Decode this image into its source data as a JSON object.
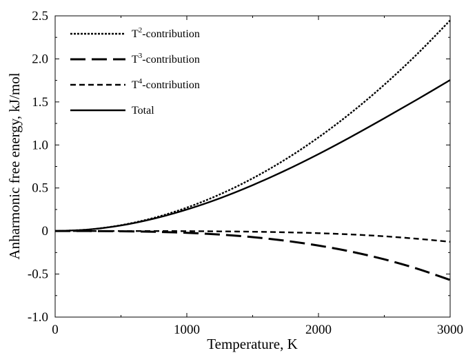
{
  "chart_data": {
    "type": "line",
    "title": "",
    "xlabel": "Temperature, K",
    "ylabel": "Anharmonic free energy, kJ/mol",
    "xlim": [
      0,
      3000
    ],
    "ylim": [
      -1.0,
      2.5
    ],
    "x_ticks": [
      "0",
      "1000",
      "2000",
      "3000"
    ],
    "y_ticks": [
      "-1.0",
      "-0.5",
      "0",
      "0.5",
      "1.0",
      "1.5",
      "2.0",
      "2.5"
    ],
    "grid": false,
    "legend_position": "top-left",
    "x": [
      0,
      250,
      500,
      750,
      1000,
      1250,
      1500,
      1750,
      2000,
      2250,
      2500,
      2750,
      3000
    ],
    "series": [
      {
        "name": "T",
        "sup": "2",
        "suffix": "-contribution",
        "style": "dotted",
        "values": [
          0,
          0.017,
          0.068,
          0.153,
          0.272,
          0.425,
          0.612,
          0.833,
          1.088,
          1.377,
          1.7,
          2.057,
          2.448
        ]
      },
      {
        "name": "T",
        "sup": "3",
        "suffix": "-contribution",
        "style": "long-dash",
        "values": [
          0,
          -0.0003,
          -0.0026,
          -0.009,
          -0.021,
          -0.041,
          -0.071,
          -0.113,
          -0.169,
          -0.24,
          -0.329,
          -0.438,
          -0.569
        ]
      },
      {
        "name": "T",
        "sup": "4",
        "suffix": "-contribution",
        "style": "dashed",
        "values": [
          0,
          0.0,
          0.0,
          -0.0002,
          -0.0015,
          -0.004,
          -0.008,
          -0.015,
          -0.025,
          -0.04,
          -0.061,
          -0.09,
          -0.125
        ]
      },
      {
        "name": "Total",
        "sup": "",
        "suffix": "",
        "style": "solid",
        "values": [
          0,
          0.017,
          0.065,
          0.144,
          0.25,
          0.38,
          0.533,
          0.705,
          0.894,
          1.097,
          1.31,
          1.529,
          1.754
        ]
      }
    ]
  }
}
